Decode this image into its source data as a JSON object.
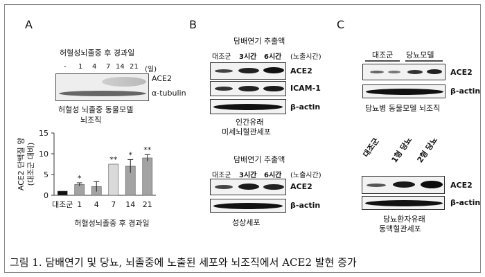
{
  "panels": {
    "A": {
      "letter": "A",
      "blot_title": "허혈성뇌졸중 후 경과일",
      "day_unit": "(일)",
      "lanes": [
        "-",
        "1",
        "4",
        "7",
        "14",
        "21"
      ],
      "protein_labels": [
        "ACE2",
        "α-tubulin"
      ],
      "tissue_label_1": "허혈성 뇌졸중 동물모델",
      "tissue_label_2": "뇌조직"
    },
    "B": {
      "letter": "B",
      "top": {
        "treatment": "담배연기 추출액",
        "lanes": [
          "대조군",
          "3시간",
          "6시간"
        ],
        "exposure": "(노출시간)",
        "protein_labels": [
          "ACE2",
          "ICAM-1",
          "β-actin"
        ],
        "cell_label_1": "인간유래",
        "cell_label_2": "미세뇌혈관세포"
      },
      "bottom": {
        "treatment": "담배연기 추출액",
        "lanes": [
          "대조군",
          "3시간",
          "6시간"
        ],
        "exposure": "(노출시간)",
        "protein_labels": [
          "ACE2",
          "β-actin"
        ],
        "cell_label": "성상세포"
      }
    },
    "C": {
      "letter": "C",
      "top": {
        "groups": [
          "대조군",
          "당뇨모델"
        ],
        "protein_labels": [
          "ACE2",
          "β-actin"
        ],
        "tissue_label": "당뇨병 동물모델 뇌조직"
      },
      "bottom": {
        "lanes": [
          "대조군",
          "1형 당뇨",
          "2형 당뇨"
        ],
        "protein_labels": [
          "ACE2",
          "β-actin"
        ],
        "cell_label_1": "당뇨환자유래",
        "cell_label_2": "동맥혈관세포"
      }
    }
  },
  "chart_data": {
    "type": "bar",
    "ylabel": "ACE2 단백질 양\n(대조군 대비)",
    "xlabel": "허혈성뇌졸중 후 경과일",
    "categories": [
      "대조군",
      "1",
      "4",
      "7",
      "14",
      "21"
    ],
    "values": [
      1.0,
      2.6,
      2.1,
      7.5,
      7.0,
      9.0
    ],
    "errors": [
      0.0,
      0.4,
      1.2,
      0.0,
      1.6,
      0.8
    ],
    "significance": [
      "",
      "*",
      "",
      "**",
      "*",
      "**"
    ],
    "colors": [
      "#111111",
      "#a3a3a3",
      "#a3a3a3",
      "#d9d9d9",
      "#a3a3a3",
      "#a3a3a3"
    ],
    "ylim": [
      0,
      15
    ],
    "yticks": [
      0,
      5,
      10,
      15
    ]
  },
  "caption": "그림 1. 담배연기 및 당뇨, 뇌졸중에 노출된 세포와 뇌조직에서 ACE2 발현 증가"
}
